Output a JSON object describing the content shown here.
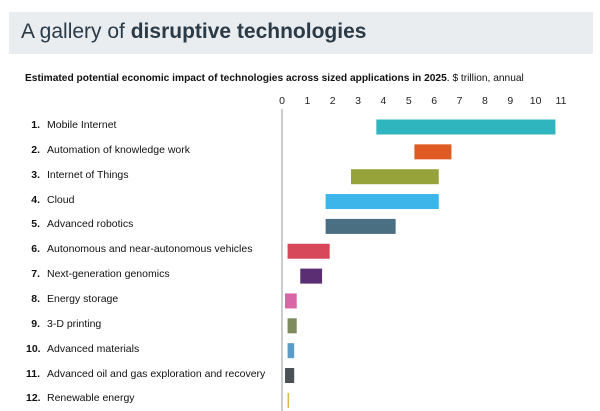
{
  "header": {
    "title_prefix": "A gallery of ",
    "title_bold": "disruptive technologies"
  },
  "chart_data": {
    "type": "bar",
    "title": "Estimated potential economic impact of technologies across sized applications in 2025",
    "unit": "$ trillion, annual",
    "xlim": [
      0,
      11
    ],
    "ticks": [
      "0",
      "1",
      "2",
      "3",
      "4",
      "5",
      "6",
      "7",
      "8",
      "9",
      "10",
      "11"
    ],
    "categories": [
      {
        "rank": "1.",
        "label": "Mobile Internet",
        "low": 3.7,
        "high": 10.8,
        "color": "#2fb5bd"
      },
      {
        "rank": "2.",
        "label": "Automation of knowledge work",
        "low": 5.2,
        "high": 6.7,
        "color": "#e05a24"
      },
      {
        "rank": "3.",
        "label": "Internet of Things",
        "low": 2.7,
        "high": 6.2,
        "color": "#95a33a"
      },
      {
        "rank": "4.",
        "label": "Cloud",
        "low": 1.7,
        "high": 6.2,
        "color": "#3bb5ea"
      },
      {
        "rank": "5.",
        "label": "Advanced robotics",
        "low": 1.7,
        "high": 4.5,
        "color": "#4a6e82"
      },
      {
        "rank": "6.",
        "label": "Autonomous and near-autonomous vehicles",
        "low": 0.2,
        "high": 1.9,
        "color": "#d6485a"
      },
      {
        "rank": "7.",
        "label": "Next-generation genomics",
        "low": 0.7,
        "high": 1.6,
        "color": "#5b2e73"
      },
      {
        "rank": "8.",
        "label": "Energy storage",
        "low": 0.1,
        "high": 0.6,
        "color": "#d865a6"
      },
      {
        "rank": "9.",
        "label": "3-D printing",
        "low": 0.2,
        "high": 0.6,
        "color": "#7d8b5d"
      },
      {
        "rank": "10.",
        "label": "Advanced materials",
        "low": 0.2,
        "high": 0.5,
        "color": "#5b9dc8"
      },
      {
        "rank": "11.",
        "label": "Advanced oil and gas exploration and recovery",
        "low": 0.1,
        "high": 0.5,
        "color": "#4a5157"
      },
      {
        "rank": "12.",
        "label": "Renewable energy",
        "low": 0.2,
        "high": 0.3,
        "color": "#d8b84a"
      }
    ]
  }
}
